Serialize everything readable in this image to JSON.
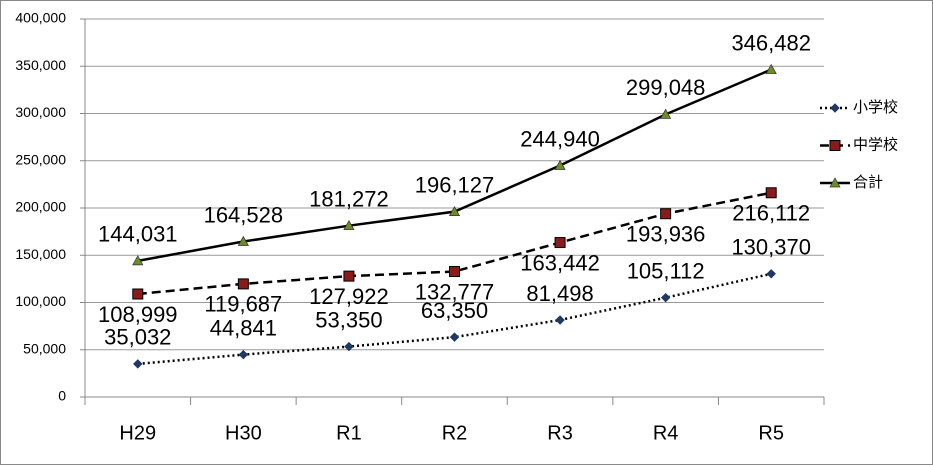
{
  "chart_data": {
    "type": "line",
    "categories": [
      "H29",
      "H30",
      "R1",
      "R2",
      "R3",
      "R4",
      "R5"
    ],
    "series": [
      {
        "name": "小学校",
        "color": "#1f3864",
        "line_color": "#000000",
        "marker": "diamond",
        "line_style": "dotted",
        "values": [
          35032,
          44841,
          53350,
          63350,
          81498,
          105112,
          130370
        ],
        "value_labels": [
          "35,032",
          "44,841",
          "53,350",
          "63,350",
          "81,498",
          "105,112",
          "130,370"
        ],
        "label_position": "above"
      },
      {
        "name": "中学校",
        "color": "#8b1a1a",
        "line_color": "#000000",
        "marker": "square",
        "line_style": "dashed",
        "values": [
          108999,
          119687,
          127922,
          132777,
          163442,
          193936,
          216112
        ],
        "value_labels": [
          "108,999",
          "119,687",
          "127,922",
          "132,777",
          "163,442",
          "193,936",
          "216,112"
        ],
        "label_position": "below"
      },
      {
        "name": "合計",
        "color": "#6b8e23",
        "line_color": "#000000",
        "marker": "triangle",
        "line_style": "solid",
        "values": [
          144031,
          164528,
          181272,
          196127,
          244940,
          299048,
          346482
        ],
        "value_labels": [
          "144,031",
          "164,528",
          "181,272",
          "196,127",
          "244,940",
          "299,048",
          "346,482"
        ],
        "label_position": "above"
      }
    ],
    "ylim": [
      0,
      400000
    ],
    "yticks": [
      0,
      {
        "value": 50000,
        "label": "50,000"
      },
      {
        "value": 100000,
        "label": "100,000"
      },
      {
        "value": 150000,
        "label": "150,000"
      },
      {
        "value": 200000,
        "label": "200,000"
      },
      {
        "value": 250000,
        "label": "250,000"
      },
      {
        "value": 300000,
        "label": "300,000"
      },
      {
        "value": 350000,
        "label": "350,000"
      },
      {
        "value": 400000,
        "label": "400,000"
      }
    ],
    "grid": true,
    "legend": "right"
  }
}
